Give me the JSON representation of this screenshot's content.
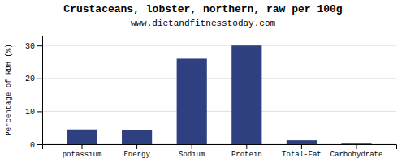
{
  "chart_data": {
    "type": "bar",
    "title": "Crustaceans, lobster, northern, raw per 100g",
    "subtitle": "www.dietandfitnesstoday.com",
    "categories": [
      "potassium",
      "Energy",
      "Sodium",
      "Protein",
      "Total-Fat",
      "Carbohydrate"
    ],
    "values": [
      4.5,
      4.3,
      26.0,
      30.0,
      1.2,
      0.2
    ],
    "color": "#2e4080",
    "ylabel": "Percentage of RDH (%)",
    "ylim": [
      0,
      33
    ],
    "yticks": [
      0,
      10,
      20,
      30
    ],
    "grid": true
  }
}
